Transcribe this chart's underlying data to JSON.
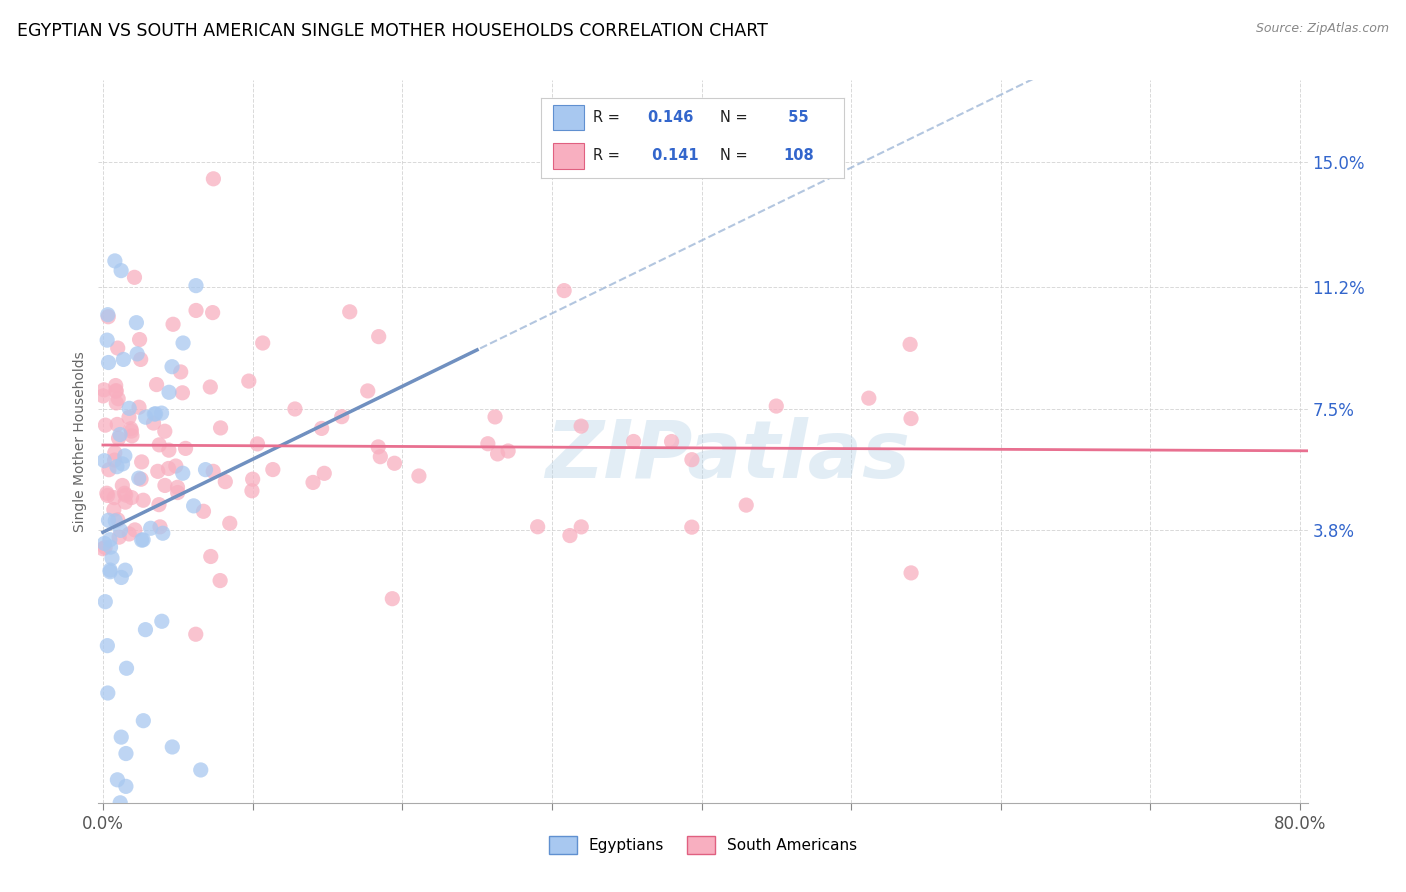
{
  "title": "EGYPTIAN VS SOUTH AMERICAN SINGLE MOTHER HOUSEHOLDS CORRELATION CHART",
  "source": "Source: ZipAtlas.com",
  "ylabel": "Single Mother Households",
  "ytick_labels": [
    "3.8%",
    "7.5%",
    "11.2%",
    "15.0%"
  ],
  "ytick_values": [
    0.038,
    0.075,
    0.112,
    0.15
  ],
  "xlim": [
    -0.003,
    0.805
  ],
  "ylim": [
    -0.045,
    0.175
  ],
  "watermark": "ZIPatlas",
  "color_egyptian": "#a8c8f0",
  "color_sa": "#f8afc0",
  "color_blue": "#6090d0",
  "color_pink": "#e06080",
  "color_legend_r": "#3366cc",
  "trendline_egy_color": "#7090c0",
  "trendline_sa_color": "#e87090",
  "trendline_dashed_color": "#a0b8d8",
  "background_color": "#ffffff",
  "grid_color": "#d0d0d0",
  "title_color": "#000000",
  "source_color": "#888888",
  "axis_label_color": "#666666",
  "right_tick_color": "#3366cc",
  "legend_text_black": "#222222",
  "legend_r1": "R = 0.146",
  "legend_n1": "N =  55",
  "legend_r2": "R =  0.141",
  "legend_n2": "N = 108"
}
